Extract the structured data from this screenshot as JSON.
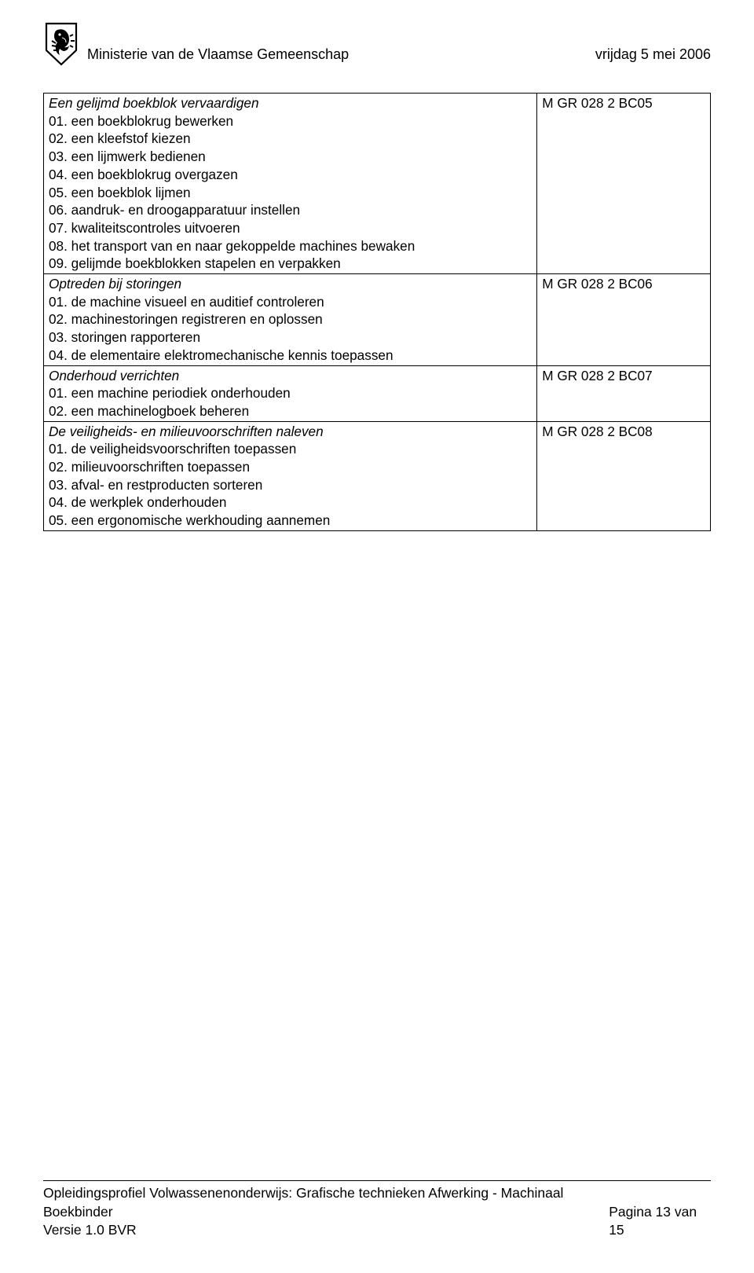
{
  "header": {
    "ministry": "Ministerie van de Vlaamse Gemeenschap",
    "date": "vrijdag 5 mei 2006"
  },
  "sections": [
    {
      "title": "Een gelijmd boekblok vervaardigen",
      "code": "M GR 028 2 BC05",
      "items": [
        "01. een boekblokrug bewerken",
        "02. een kleefstof kiezen",
        "03. een lijmwerk bedienen",
        "04. een boekblokrug overgazen",
        "05. een boekblok lijmen",
        "06. aandruk- en droogapparatuur instellen",
        "07. kwaliteitscontroles uitvoeren",
        "08. het transport van en naar gekoppelde machines bewaken",
        "09. gelijmde boekblokken stapelen en verpakken"
      ]
    },
    {
      "title": "Optreden bij storingen",
      "code": "M GR 028 2 BC06",
      "items": [
        "01. de machine visueel en auditief controleren",
        "02. machinestoringen registreren en oplossen",
        "03. storingen rapporteren",
        "04. de elementaire elektromechanische kennis toepassen"
      ]
    },
    {
      "title": "Onderhoud verrichten",
      "code": "M GR 028 2 BC07",
      "items": [
        "01. een machine periodiek onderhouden",
        "02. een machinelogboek beheren"
      ]
    },
    {
      "title": "De veiligheids- en milieuvoorschriften naleven",
      "code": "M GR 028 2 BC08",
      "items": [
        "01. de veiligheidsvoorschriften toepassen",
        "02. milieuvoorschriften toepassen",
        "03. afval- en restproducten sorteren",
        "04. de werkplek onderhouden",
        "05. een ergonomische werkhouding aannemen"
      ]
    }
  ],
  "footer": {
    "line1": "Opleidingsprofiel Volwassenenonderwijs: Grafische technieken Afwerking - Machinaal Boekbinder",
    "line2": "Versie 1.0 BVR",
    "page": "Pagina 13 van 15"
  },
  "colors": {
    "background": "#ffffff",
    "text": "#000000",
    "border": "#000000"
  }
}
